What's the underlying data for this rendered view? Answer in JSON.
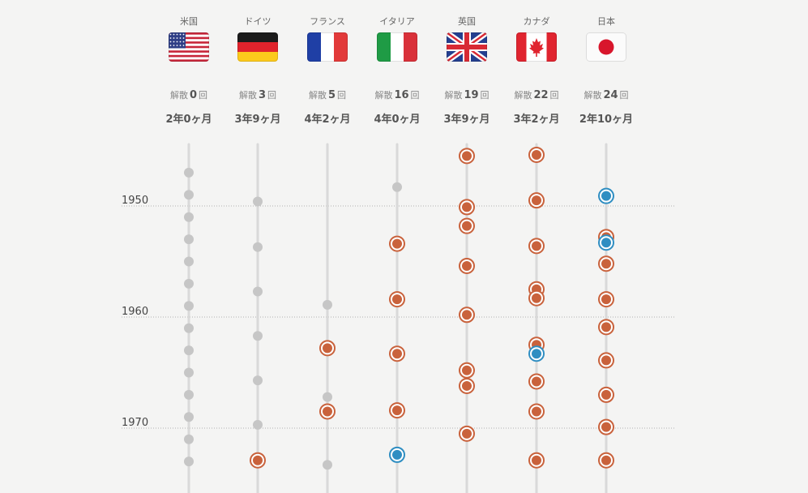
{
  "chart_data": {
    "type": "scatter",
    "y_axis": {
      "ticks": [
        1950,
        1960,
        1970
      ],
      "range": [
        1946,
        1972.5
      ]
    },
    "dissolution_prefix": "解散",
    "dissolution_suffix": "回",
    "point_styles": {
      "term": "#c6c6c6",
      "dissolution": "#c9623c",
      "dissolution_alt": "#2f8ec2"
    },
    "countries": [
      {
        "name": "米国",
        "flag": "us-flag",
        "dissolutions": "0",
        "avg_term": "2年0ヶ月",
        "events": [
          {
            "year": 1947,
            "kind": "term"
          },
          {
            "year": 1949,
            "kind": "term"
          },
          {
            "year": 1951,
            "kind": "term"
          },
          {
            "year": 1953,
            "kind": "term"
          },
          {
            "year": 1955,
            "kind": "term"
          },
          {
            "year": 1957,
            "kind": "term"
          },
          {
            "year": 1959,
            "kind": "term"
          },
          {
            "year": 1961,
            "kind": "term"
          },
          {
            "year": 1963,
            "kind": "term"
          },
          {
            "year": 1965,
            "kind": "term"
          },
          {
            "year": 1967,
            "kind": "term"
          },
          {
            "year": 1969,
            "kind": "term"
          },
          {
            "year": 1971,
            "kind": "term"
          },
          {
            "year": 1973,
            "kind": "term"
          }
        ]
      },
      {
        "name": "ドイツ",
        "flag": "germany-flag",
        "dissolutions": "3",
        "avg_term": "3年9ヶ月",
        "events": [
          {
            "year": 1949.6,
            "kind": "term"
          },
          {
            "year": 1953.7,
            "kind": "term"
          },
          {
            "year": 1957.7,
            "kind": "term"
          },
          {
            "year": 1961.7,
            "kind": "term"
          },
          {
            "year": 1965.7,
            "kind": "term"
          },
          {
            "year": 1969.7,
            "kind": "term"
          },
          {
            "year": 1972.9,
            "kind": "dissolution"
          }
        ]
      },
      {
        "name": "フランス",
        "flag": "france-flag",
        "dissolutions": "5",
        "avg_term": "4年2ヶ月",
        "events": [
          {
            "year": 1958.9,
            "kind": "term"
          },
          {
            "year": 1962.8,
            "kind": "dissolution"
          },
          {
            "year": 1967.2,
            "kind": "term"
          },
          {
            "year": 1968.5,
            "kind": "dissolution"
          },
          {
            "year": 1973.3,
            "kind": "term"
          }
        ]
      },
      {
        "name": "イタリア",
        "flag": "italy-flag",
        "dissolutions": "16",
        "avg_term": "4年0ヶ月",
        "events": [
          {
            "year": 1948.3,
            "kind": "term"
          },
          {
            "year": 1953.4,
            "kind": "dissolution"
          },
          {
            "year": 1958.4,
            "kind": "dissolution"
          },
          {
            "year": 1963.3,
            "kind": "dissolution"
          },
          {
            "year": 1968.4,
            "kind": "dissolution"
          },
          {
            "year": 1972.4,
            "kind": "dissolution_alt"
          }
        ]
      },
      {
        "name": "英国",
        "flag": "uk-flag",
        "dissolutions": "19",
        "avg_term": "3年9ヶ月",
        "events": [
          {
            "year": 1945.5,
            "kind": "dissolution"
          },
          {
            "year": 1950.1,
            "kind": "dissolution"
          },
          {
            "year": 1951.8,
            "kind": "dissolution"
          },
          {
            "year": 1955.4,
            "kind": "dissolution"
          },
          {
            "year": 1959.8,
            "kind": "dissolution"
          },
          {
            "year": 1964.8,
            "kind": "dissolution"
          },
          {
            "year": 1966.2,
            "kind": "dissolution"
          },
          {
            "year": 1970.5,
            "kind": "dissolution"
          }
        ]
      },
      {
        "name": "カナダ",
        "flag": "canada-flag",
        "dissolutions": "22",
        "avg_term": "3年2ヶ月",
        "events": [
          {
            "year": 1945.4,
            "kind": "dissolution"
          },
          {
            "year": 1949.5,
            "kind": "dissolution"
          },
          {
            "year": 1953.6,
            "kind": "dissolution"
          },
          {
            "year": 1957.5,
            "kind": "dissolution"
          },
          {
            "year": 1958.3,
            "kind": "dissolution"
          },
          {
            "year": 1962.5,
            "kind": "dissolution"
          },
          {
            "year": 1963.3,
            "kind": "dissolution_alt"
          },
          {
            "year": 1965.8,
            "kind": "dissolution"
          },
          {
            "year": 1968.5,
            "kind": "dissolution"
          },
          {
            "year": 1972.9,
            "kind": "dissolution"
          }
        ]
      },
      {
        "name": "日本",
        "flag": "japan-flag",
        "dissolutions": "24",
        "avg_term": "2年10ヶ月",
        "events": [
          {
            "year": 1949.1,
            "kind": "dissolution_alt"
          },
          {
            "year": 1952.8,
            "kind": "dissolution"
          },
          {
            "year": 1953.3,
            "kind": "dissolution_alt"
          },
          {
            "year": 1955.2,
            "kind": "dissolution"
          },
          {
            "year": 1958.4,
            "kind": "dissolution"
          },
          {
            "year": 1960.9,
            "kind": "dissolution"
          },
          {
            "year": 1963.9,
            "kind": "dissolution"
          },
          {
            "year": 1967.0,
            "kind": "dissolution"
          },
          {
            "year": 1969.9,
            "kind": "dissolution"
          },
          {
            "year": 1972.9,
            "kind": "dissolution"
          }
        ]
      }
    ]
  }
}
